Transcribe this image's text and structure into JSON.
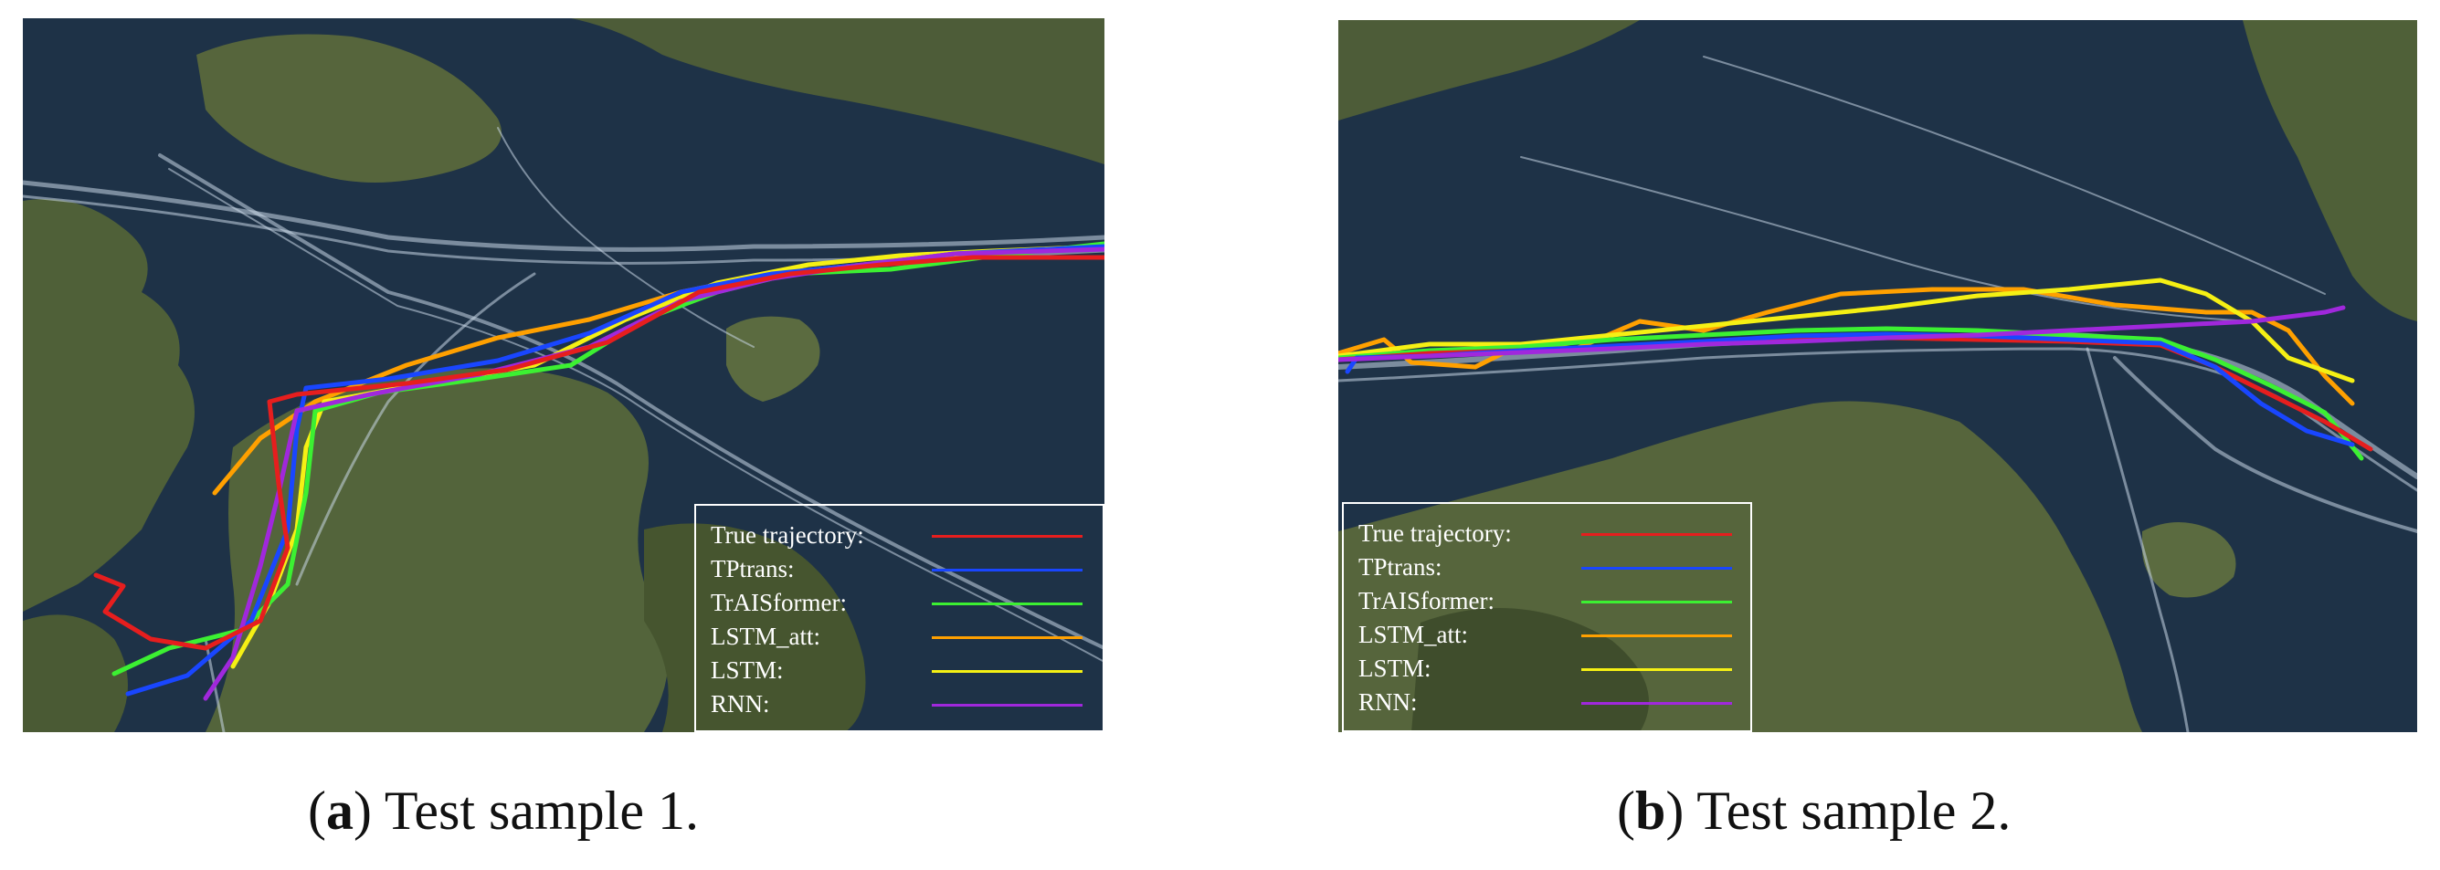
{
  "colors": {
    "true_trajectory": "#e61e1e",
    "tptrans": "#1946ff",
    "traisformer": "#3cf032",
    "lstm_att": "#ffa000",
    "lstm": "#f5f014",
    "rnn": "#a028dc",
    "sea": "#1e3247",
    "land": "#4a5a36",
    "shipping_lanes": "#c8d7e6"
  },
  "legend": [
    {
      "label": "True trajectory:",
      "key": "true_trajectory"
    },
    {
      "label": "TPtrans:",
      "key": "tptrans"
    },
    {
      "label": "TrAISformer:",
      "key": "traisformer"
    },
    {
      "label": "LSTM_att:",
      "key": "lstm_att"
    },
    {
      "label": "LSTM:",
      "key": "lstm"
    },
    {
      "label": "RNN:",
      "key": "rnn"
    }
  ],
  "panels": [
    {
      "letter": "a",
      "caption": "Test sample 1.",
      "legend_placement": "bottom-right"
    },
    {
      "letter": "b",
      "caption": "Test sample 2.",
      "legend_placement": "bottom-left"
    }
  ]
}
